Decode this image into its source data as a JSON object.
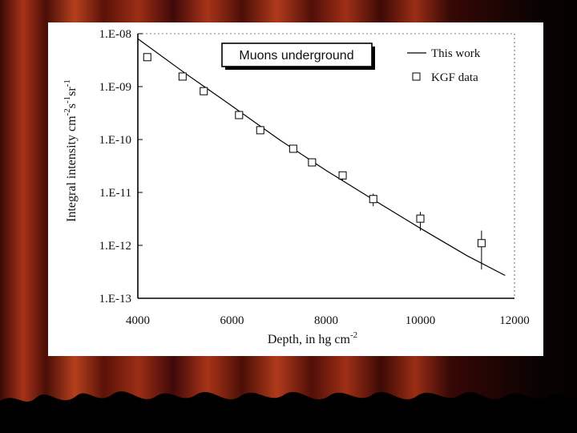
{
  "chart_data": {
    "type": "scatter",
    "title": "Muons underground",
    "xlabel": "Depth, in hg cm",
    "xlabel_sup": "-2",
    "ylabel_parts": [
      {
        "t": "Integral intensity cm",
        "sup": false
      },
      {
        "t": "-2",
        "sup": true
      },
      {
        "t": "s",
        "sup": false
      },
      {
        "t": "-1",
        "sup": true
      },
      {
        "t": "sr",
        "sup": false
      },
      {
        "t": "-1",
        "sup": true
      }
    ],
    "xlim": [
      4000,
      12000
    ],
    "ylim_log10": [
      -13,
      -8
    ],
    "x_ticks": [
      4000,
      6000,
      8000,
      10000,
      12000
    ],
    "x_tick_labels": [
      "4000",
      "6000",
      "8000",
      "10000",
      "12000"
    ],
    "y_ticks_log10": [
      -8,
      -9,
      -10,
      -11,
      -12,
      -13
    ],
    "y_tick_labels": [
      "1.E-08",
      "1.E-09",
      "1.E-10",
      "1.E-11",
      "1.E-12",
      "1.E-13"
    ],
    "legend_position": "top-right",
    "series": [
      {
        "name": "This work",
        "kind": "line",
        "x": [
          4000,
          5000,
          6000,
          7000,
          8000,
          9000,
          10000,
          11000,
          11800
        ],
        "y": [
          8e-09,
          1.8e-09,
          4.3e-10,
          1e-10,
          2.6e-11,
          7.3e-12,
          2.1e-12,
          6.3e-13,
          2.7e-13
        ]
      },
      {
        "name": "KGF data",
        "kind": "points",
        "marker": "open-square",
        "x": [
          4200,
          4950,
          5400,
          6150,
          6600,
          7300,
          7700,
          8350,
          9000,
          10000,
          11300
        ],
        "y": [
          3.6e-09,
          1.55e-09,
          8.2e-10,
          2.9e-10,
          1.5e-10,
          6.7e-11,
          3.7e-11,
          2.1e-11,
          7.5e-12,
          3.2e-12,
          1.1e-12
        ],
        "err_low": [
          null,
          null,
          null,
          null,
          null,
          null,
          null,
          1.7e-11,
          5.5e-12,
          1.9e-12,
          3.5e-13
        ],
        "err_high": [
          null,
          null,
          null,
          null,
          null,
          null,
          null,
          2.4e-11,
          9.5e-12,
          4.3e-12,
          1.9e-12
        ]
      }
    ]
  }
}
